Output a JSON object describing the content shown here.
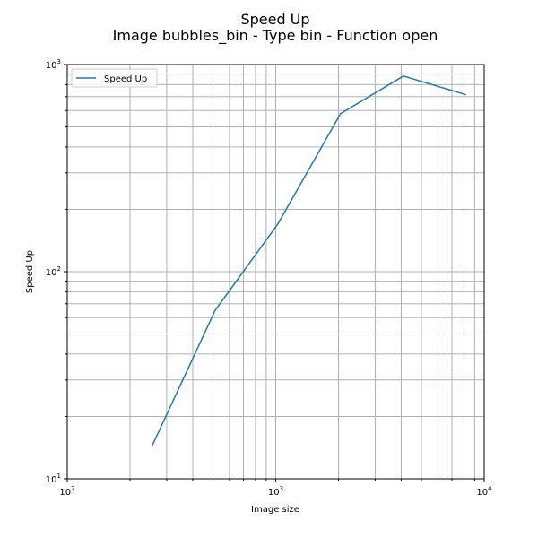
{
  "chart_data": {
    "type": "line",
    "title_line1": "Speed Up",
    "title_line2": "Image bubbles_bin - Type bin - Function open",
    "xlabel": "Image size",
    "ylabel": "Speed Up",
    "xscale": "log",
    "yscale": "log",
    "xlim": [
      100,
      10000
    ],
    "ylim": [
      10,
      1000
    ],
    "grid": "both-major-minor",
    "legend_position": "upper-left",
    "x_tick_labels": [
      {
        "base": "10",
        "exp": "2",
        "value": 100
      },
      {
        "base": "10",
        "exp": "3",
        "value": 1000
      },
      {
        "base": "10",
        "exp": "4",
        "value": 10000
      }
    ],
    "y_tick_labels": [
      {
        "base": "10",
        "exp": "1",
        "value": 10
      },
      {
        "base": "10",
        "exp": "2",
        "value": 100
      },
      {
        "base": "10",
        "exp": "3",
        "value": 1000
      }
    ],
    "series": [
      {
        "name": "Speed Up",
        "color": "#1f77b4",
        "x": [
          256,
          512,
          1024,
          2048,
          4096,
          8192
        ],
        "y": [
          14.5,
          65,
          170,
          580,
          880,
          715
        ]
      }
    ]
  }
}
